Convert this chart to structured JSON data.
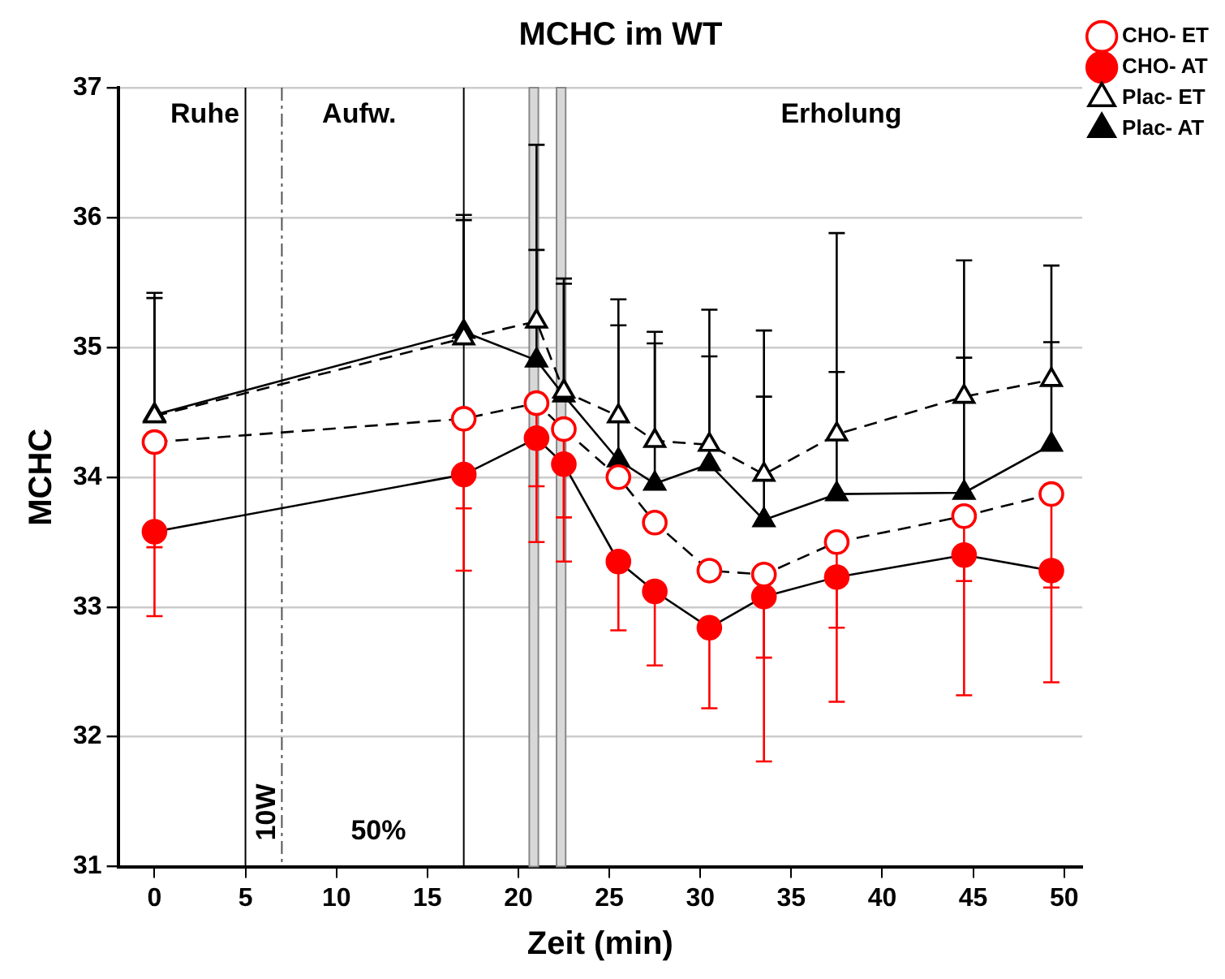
{
  "chart_data": {
    "type": "line",
    "title": "MCHC im WT",
    "xlabel": "Zeit (min)",
    "ylabel": "MCHC",
    "x": [
      0,
      17,
      21,
      22.5,
      25.5,
      27.5,
      30.5,
      33.5,
      37.5,
      44.5,
      49.3
    ],
    "series": [
      {
        "name": "CHO- ET",
        "color": "#ff0000",
        "marker": "circle",
        "line_style": "dashed",
        "values": [
          34.27,
          34.45,
          34.57,
          34.37,
          34.0,
          33.65,
          33.28,
          33.25,
          33.5,
          33.7,
          33.87
        ],
        "errors": [
          [
            33.46,
            34.27
          ],
          [
            33.76,
            34.45
          ],
          [
            33.93,
            34.57
          ],
          [
            33.69,
            34.37
          ],
          null,
          null,
          null,
          [
            32.61,
            33.25
          ],
          [
            32.84,
            33.5
          ],
          [
            33.2,
            33.7
          ],
          [
            33.15,
            33.87
          ]
        ]
      },
      {
        "name": "CHO- AT",
        "color": "#ff0000",
        "marker": "circle",
        "line_style": "solid",
        "values": [
          33.58,
          34.02,
          34.3,
          34.1,
          33.35,
          33.12,
          32.84,
          33.08,
          33.23,
          33.4,
          33.28
        ],
        "errors": [
          [
            32.93,
            33.58
          ],
          [
            33.28,
            34.02
          ],
          [
            33.5,
            34.3
          ],
          [
            33.35,
            34.1
          ],
          [
            32.82,
            33.35
          ],
          [
            32.55,
            33.12
          ],
          [
            32.22,
            32.84
          ],
          [
            31.81,
            33.08
          ],
          [
            32.27,
            33.23
          ],
          [
            32.32,
            33.4
          ],
          [
            32.42,
            33.28
          ]
        ]
      },
      {
        "name": "Plac- ET",
        "color": "#000000",
        "marker": "triangle",
        "line_style": "dashed",
        "values": [
          34.47,
          35.07,
          35.2,
          34.66,
          34.47,
          34.28,
          34.25,
          34.02,
          34.33,
          34.62,
          34.75
        ],
        "errors": [
          [
            34.47,
            35.38
          ],
          [
            35.07,
            35.98
          ],
          [
            35.2,
            35.75
          ],
          [
            34.66,
            35.49
          ],
          [
            34.47,
            35.17
          ],
          [
            34.28,
            35.03
          ],
          [
            34.25,
            34.93
          ],
          [
            34.02,
            34.62
          ],
          [
            34.33,
            34.81
          ],
          [
            34.62,
            34.92
          ],
          [
            34.75,
            35.04
          ]
        ]
      },
      {
        "name": "Plac- AT",
        "color": "#000000",
        "marker": "triangle",
        "line_style": "solid",
        "values": [
          34.48,
          35.12,
          34.9,
          34.63,
          34.13,
          33.95,
          34.1,
          33.67,
          33.87,
          33.88,
          34.25
        ],
        "errors": [
          [
            34.48,
            35.42
          ],
          [
            35.12,
            36.02
          ],
          [
            34.9,
            36.56
          ],
          [
            34.63,
            35.53
          ],
          [
            34.13,
            35.37
          ],
          [
            33.95,
            35.12
          ],
          [
            34.1,
            35.29
          ],
          [
            33.67,
            35.13
          ],
          [
            33.87,
            35.88
          ],
          [
            33.88,
            35.67
          ],
          [
            34.25,
            35.63
          ]
        ]
      }
    ],
    "xlim": [
      -2,
      51
    ],
    "xticks": [
      0,
      5,
      10,
      15,
      20,
      25,
      30,
      35,
      40,
      45,
      50
    ],
    "ylim": [
      31,
      37
    ],
    "yticks": [
      31,
      32,
      33,
      34,
      35,
      36,
      37
    ],
    "grid": "y",
    "legend": "top right",
    "ref_lines": [
      {
        "axis": "x",
        "value": 5,
        "label": null,
        "line_style": "solid",
        "color": "#000000"
      },
      {
        "axis": "x",
        "value": 7,
        "label": null,
        "line_style": "dashdot",
        "color": "#555555"
      },
      {
        "axis": "x",
        "value": 17,
        "label": null,
        "line_style": "solid",
        "color": "#000000"
      }
    ],
    "bands": [
      {
        "axis": "x",
        "from": 20.6,
        "to": 21.1,
        "label": null,
        "color": "#d8d8d8"
      },
      {
        "axis": "x",
        "from": 22.1,
        "to": 22.6,
        "label": null,
        "color": "#d8d8d8"
      }
    ],
    "annotations": [
      "Ruhe",
      "Aufw.",
      "Erholung",
      "10W",
      "50%"
    ]
  }
}
